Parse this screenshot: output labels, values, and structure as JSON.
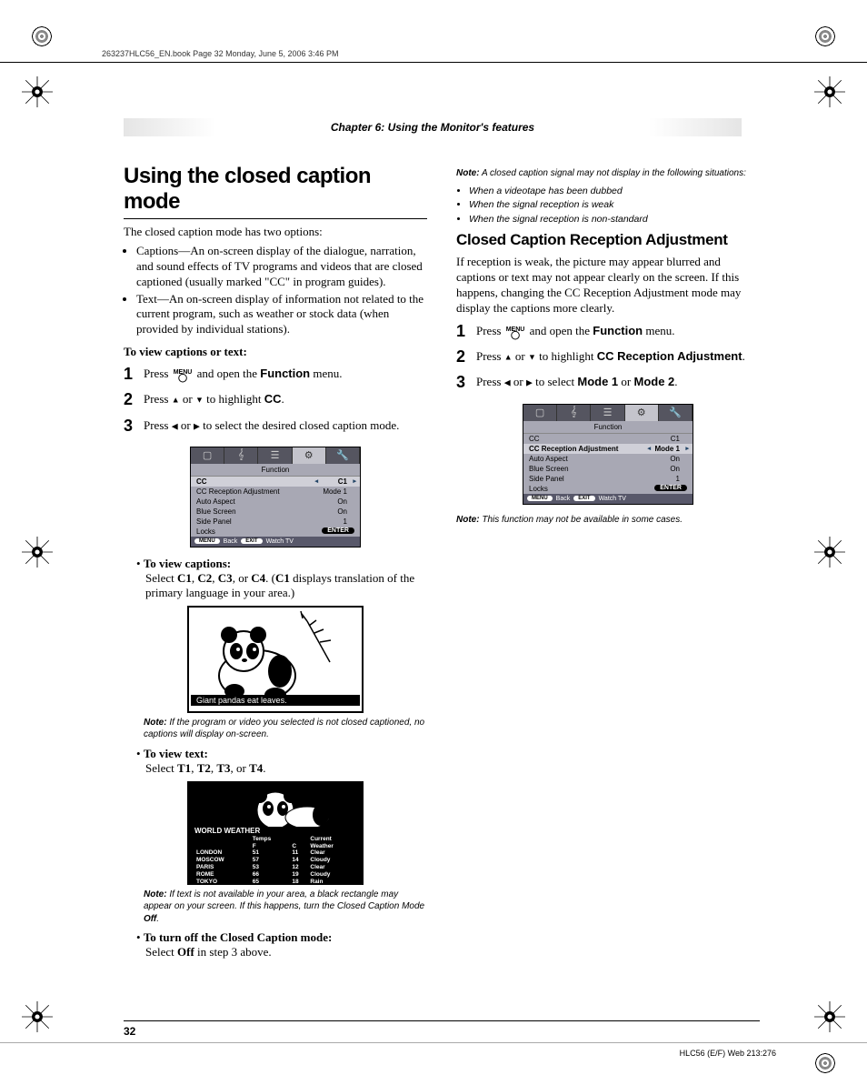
{
  "meta": {
    "header_file": "263237HLC56_EN.book  Page 32  Monday, June 5, 2006  3:46 PM",
    "chapter": "Chapter 6: Using the Monitor's features",
    "page_number": "32",
    "footer_right": "HLC56 (E/F) Web 213:276"
  },
  "left": {
    "h1": "Using the closed caption mode",
    "intro": "The closed caption mode has two options:",
    "opts": [
      "Captions—An on-screen display of the dialogue, narration, and sound effects of TV programs and videos that are closed captioned (usually marked \"CC\" in program guides).",
      "Text—An on-screen display of information not related to the current program, such as weather or stock data (when provided by individual stations)."
    ],
    "how_title": "To view captions or text:",
    "steps": {
      "s1a": "Press ",
      "s1b": " and open the ",
      "s1_func": "Function",
      "s1c": " menu.",
      "s2a": "Press ",
      "s2b": " or ",
      "s2c": " to highlight ",
      "s2_cc": "CC",
      "s2d": ".",
      "s3a": "Press ",
      "s3b": " or ",
      "s3c": " to select the desired closed caption mode."
    },
    "vc_lbl": "To view captions:",
    "vc_txt_a": "Select ",
    "vc_c1": "C1",
    "vc_c2": "C2",
    "vc_c3": "C3",
    "vc_c4": "C4",
    "vc_txt_b": ". (",
    "vc_txt_c": " displays translation of the primary language in your area.)",
    "caption_strip": "Giant  pandas  eat  leaves.",
    "note1_label": "Note:",
    "note1": " If the program or video you selected is not closed captioned, no captions will display on-screen.",
    "vt_lbl": "To view text:",
    "vt_txt_a": "Select ",
    "vt_t1": "T1",
    "vt_t2": "T2",
    "vt_t3": "T3",
    "vt_t4": "T4",
    "vt_txt_b": ".",
    "weather": {
      "title": "WORLD WEATHER",
      "hdr": [
        "",
        "Temps",
        "",
        "Current"
      ],
      "hdr2": [
        "",
        "F",
        "C",
        "Weather"
      ],
      "rows": [
        [
          "LONDON",
          "51",
          "11",
          "Clear"
        ],
        [
          "MOSCOW",
          "57",
          "14",
          "Cloudy"
        ],
        [
          "PARIS",
          "53",
          "12",
          "Clear"
        ],
        [
          "ROME",
          "66",
          "19",
          "Cloudy"
        ],
        [
          "TOKYO",
          "65",
          "18",
          "Rain"
        ]
      ]
    },
    "note2_label": "Note:",
    "note2a": " If text is not available in your area, a black rectangle may appear on your screen. If this happens, turn the Closed Caption Mode ",
    "note2_off": "Off",
    "note2b": ".",
    "turnoff_lbl": "To turn off the Closed Caption mode:",
    "turnoff_txt_a": "Select ",
    "turnoff_off": "Off",
    "turnoff_txt_b": " in step 3 above."
  },
  "right": {
    "note1_label": "Note:",
    "note1": " A closed caption signal may not display in the following situations:",
    "sits": [
      "When a videotape has been dubbed",
      "When the signal reception is weak",
      "When the signal reception is non-standard"
    ],
    "h2": "Closed Caption Reception Adjustment",
    "para": "If reception is weak, the picture may appear blurred and captions or text may not appear clearly on the screen. If this happens, changing the CC Reception Adjustment mode may display the captions more clearly.",
    "steps": {
      "s1a": "Press ",
      "s1b": " and open the ",
      "s1_func": "Function",
      "s1c": " menu.",
      "s2a": "Press ",
      "s2b": " or ",
      "s2c": " to highlight ",
      "s2_ccra": "CC Reception Adjustment",
      "s2d": ".",
      "s3a": "Press ",
      "s3b": " or ",
      "s3c": " to select ",
      "s3_m1": "Mode 1",
      "s3_or": " or ",
      "s3_m2": "Mode 2",
      "s3d": "."
    },
    "note2_label": "Note:",
    "note2": " This function may not be available in some cases."
  },
  "osd1": {
    "title": "Function",
    "rows": [
      {
        "l": "CC",
        "r": "C1",
        "sel": true
      },
      {
        "l": "CC Reception Adjustment",
        "r": "Mode 1"
      },
      {
        "l": "Auto Aspect",
        "r": "On"
      },
      {
        "l": "Blue Screen",
        "r": "On"
      },
      {
        "l": "Side Panel",
        "r": "1"
      },
      {
        "l": "Locks",
        "r": "ENTER",
        "pill": true
      }
    ],
    "foot": {
      "menu": "MENU",
      "back": "Back",
      "exit": "EXIT",
      "watch": "Watch TV"
    }
  },
  "osd2": {
    "title": "Function",
    "rows": [
      {
        "l": "CC",
        "r": "C1"
      },
      {
        "l": "CC Reception Adjustment",
        "r": "Mode 1",
        "sel": true
      },
      {
        "l": "Auto Aspect",
        "r": "On"
      },
      {
        "l": "Blue Screen",
        "r": "On"
      },
      {
        "l": "Side Panel",
        "r": "1"
      },
      {
        "l": "Locks",
        "r": "ENTER",
        "pill": true
      }
    ],
    "foot": {
      "menu": "MENU",
      "back": "Back",
      "exit": "EXIT",
      "watch": "Watch TV"
    }
  },
  "icons": {
    "menu_top": "MENU"
  }
}
